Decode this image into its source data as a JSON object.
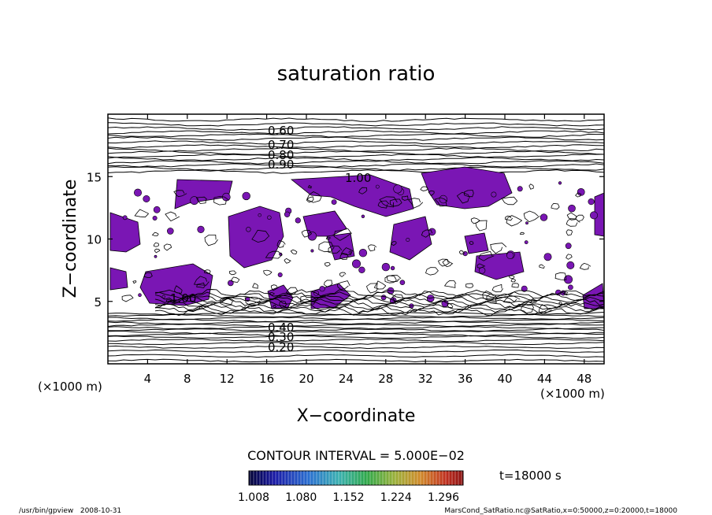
{
  "chart_data": {
    "type": "contour",
    "title": "saturation ratio",
    "xlabel": "X−coordinate",
    "ylabel": "Z−coordinate",
    "x_unit_left": "(×1000 m)",
    "x_unit_right": "(×1000 m)",
    "xlim": [
      0,
      50
    ],
    "ylim": [
      0,
      20
    ],
    "x_ticks": [
      4,
      8,
      12,
      16,
      20,
      24,
      28,
      32,
      36,
      40,
      44,
      48
    ],
    "y_ticks": [
      5,
      10,
      15
    ],
    "contour_labels_upper": [
      "0.60",
      "0.70",
      "0.80",
      "0.90"
    ],
    "contour_label_mid": "1.00",
    "contour_label_left": "1.00",
    "contour_labels_lower": [
      "0.40",
      "0.30",
      "0.20"
    ],
    "contour_interval": "CONTOUR INTERVAL = 5.000E−02",
    "colorbar_ticks": [
      "1.008",
      "1.080",
      "1.152",
      "1.224",
      "1.296"
    ],
    "colors": {
      "fill": "#7a16b4"
    }
  },
  "time_label": "t=18000 s",
  "footer_left": "/usr/bin/gpview   2008-10-31",
  "footer_right": "MarsCond_SatRatio.nc@SatRatio,x=0:50000,z=0:20000,t=18000"
}
